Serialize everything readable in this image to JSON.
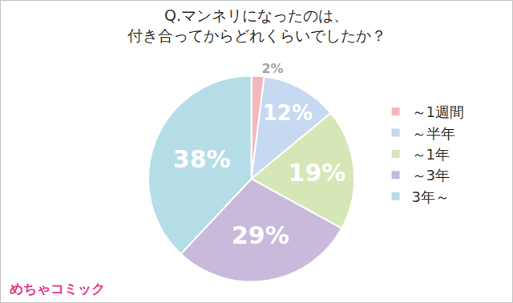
{
  "chart_data": {
    "type": "pie",
    "title": "Q.マンネリになったのは、\n付き合ってからどれくらいでしたか？",
    "categories": [
      "～1週間",
      "～半年",
      "～1年",
      "～3年",
      "3年～"
    ],
    "values": [
      2,
      12,
      19,
      29,
      38
    ],
    "value_labels": [
      "2%",
      "12%",
      "19%",
      "29%",
      "38%"
    ],
    "colors": [
      "#f4b8bb",
      "#c7d8f1",
      "#d5e7b7",
      "#c9badc",
      "#b5dde7"
    ],
    "data_labels": true,
    "legend": "right",
    "annotations": [
      "めちゃコミック"
    ]
  }
}
